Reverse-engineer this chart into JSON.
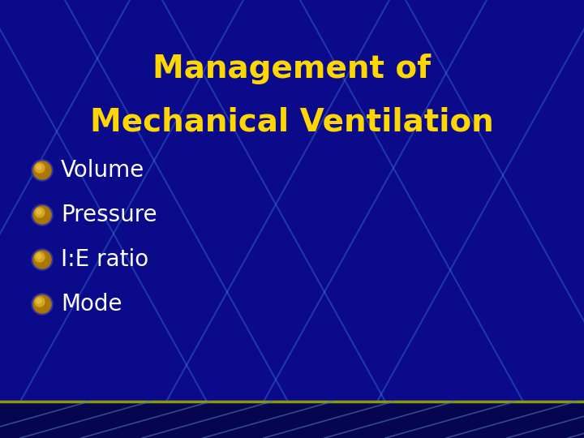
{
  "title_line1": "Management of",
  "title_line2": "Mechanical Ventilation",
  "title_color": "#FFD700",
  "bullet_items": [
    "Volume",
    "Pressure",
    "I:E ratio",
    "Mode"
  ],
  "bullet_text_color": "#FFFFFF",
  "bullet_color": "#B8860B",
  "bg_color": "#0A0A8B",
  "line_color": "#3366CC",
  "bottom_line_color": "#8B9B00",
  "title_fontsize": 28,
  "bullet_fontsize": 20,
  "fig_width": 7.2,
  "fig_height": 5.4,
  "dpi": 100
}
